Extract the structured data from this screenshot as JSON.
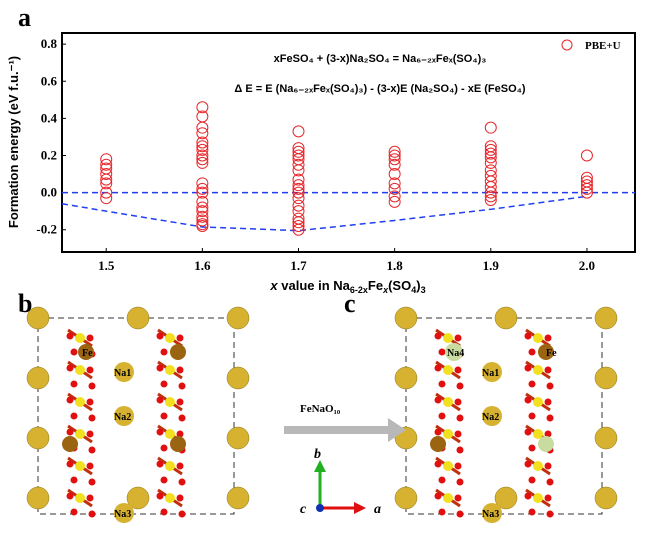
{
  "panels": {
    "a": "a",
    "b": "b",
    "c": "c"
  },
  "chart_data": {
    "type": "scatter",
    "xlabel_parts": {
      "x": "x",
      "mid": " value in Na",
      "sub1": "6-2x",
      "fe": "Fe",
      "sub2": "x",
      "tail": "(SO",
      "sub3": "4",
      "end": ")",
      "sub4": "3"
    },
    "ylabel": "Formation energy (eV f.u.⁻¹)",
    "xlim": [
      1.454,
      2.05
    ],
    "ylim": [
      -0.32,
      0.86
    ],
    "xticks": [
      "1.5",
      "1.6",
      "1.7",
      "1.8",
      "1.9",
      "2.0"
    ],
    "yticks": [
      "-0.2",
      "0.0",
      "0.2",
      "0.4",
      "0.6",
      "0.8"
    ],
    "legend": {
      "label": "PBE+U",
      "position": "top-right",
      "color": "#e8262a"
    },
    "equation1": "xFeSO₄ + (3-x)Na₂SO₄ = Na₆₋₂ₓFeₓ(SO₄)₃",
    "equation2": "Δ E = E (Na₆₋₂ₓFeₓ(SO₄)₃) - (3-x)E (Na₂SO₄) - xE (FeSO₄)",
    "series": [
      {
        "name": "PBE+U",
        "color": "#e8262a",
        "points": [
          [
            1.5,
            0.18
          ],
          [
            1.5,
            0.15
          ],
          [
            1.5,
            0.13
          ],
          [
            1.5,
            0.1
          ],
          [
            1.5,
            0.07
          ],
          [
            1.5,
            0.05
          ],
          [
            1.5,
            0.0
          ],
          [
            1.5,
            -0.03
          ],
          [
            1.6,
            0.46
          ],
          [
            1.6,
            0.41
          ],
          [
            1.6,
            0.35
          ],
          [
            1.6,
            0.32
          ],
          [
            1.6,
            0.27
          ],
          [
            1.6,
            0.25
          ],
          [
            1.6,
            0.23
          ],
          [
            1.6,
            0.2
          ],
          [
            1.6,
            0.18
          ],
          [
            1.6,
            0.16
          ],
          [
            1.6,
            0.05
          ],
          [
            1.6,
            0.02
          ],
          [
            1.6,
            0.0
          ],
          [
            1.6,
            -0.05
          ],
          [
            1.6,
            -0.08
          ],
          [
            1.6,
            -0.1
          ],
          [
            1.6,
            -0.13
          ],
          [
            1.6,
            -0.15
          ],
          [
            1.6,
            -0.17
          ],
          [
            1.6,
            -0.18
          ],
          [
            1.7,
            0.33
          ],
          [
            1.7,
            0.24
          ],
          [
            1.7,
            0.22
          ],
          [
            1.7,
            0.2
          ],
          [
            1.7,
            0.18
          ],
          [
            1.7,
            0.15
          ],
          [
            1.7,
            0.12
          ],
          [
            1.7,
            0.07
          ],
          [
            1.7,
            0.04
          ],
          [
            1.7,
            0.02
          ],
          [
            1.7,
            0.0
          ],
          [
            1.7,
            -0.03
          ],
          [
            1.7,
            -0.07
          ],
          [
            1.7,
            -0.1
          ],
          [
            1.7,
            -0.14
          ],
          [
            1.7,
            -0.16
          ],
          [
            1.7,
            -0.18
          ],
          [
            1.7,
            -0.2
          ],
          [
            1.8,
            0.22
          ],
          [
            1.8,
            0.2
          ],
          [
            1.8,
            0.18
          ],
          [
            1.8,
            0.15
          ],
          [
            1.8,
            0.1
          ],
          [
            1.8,
            0.05
          ],
          [
            1.8,
            0.02
          ],
          [
            1.8,
            -0.02
          ],
          [
            1.8,
            -0.05
          ],
          [
            1.9,
            0.35
          ],
          [
            1.9,
            0.25
          ],
          [
            1.9,
            0.23
          ],
          [
            1.9,
            0.21
          ],
          [
            1.9,
            0.19
          ],
          [
            1.9,
            0.16
          ],
          [
            1.9,
            0.12
          ],
          [
            1.9,
            0.09
          ],
          [
            1.9,
            0.06
          ],
          [
            1.9,
            0.03
          ],
          [
            1.9,
            0.0
          ],
          [
            1.9,
            -0.02
          ],
          [
            1.9,
            -0.04
          ],
          [
            2.0,
            0.2
          ],
          [
            2.0,
            0.08
          ],
          [
            2.0,
            0.06
          ],
          [
            2.0,
            0.04
          ],
          [
            2.0,
            0.02
          ],
          [
            2.0,
            0.0
          ]
        ]
      }
    ],
    "reference_line": {
      "y": 0.0,
      "color": "#1f3ff0",
      "style": "dashed"
    },
    "convex_hull": {
      "color": "#1f3ff0",
      "style": "dashed",
      "points": [
        [
          1.454,
          -0.06
        ],
        [
          1.5,
          -0.1
        ],
        [
          1.6,
          -0.185
        ],
        [
          1.7,
          -0.205
        ],
        [
          1.8,
          -0.15
        ],
        [
          1.9,
          -0.09
        ],
        [
          2.0,
          -0.02
        ]
      ]
    }
  },
  "structure_b": {
    "labels": [
      "Fe",
      "Na1",
      "Na2",
      "Na3"
    ]
  },
  "structure_c": {
    "labels": [
      "Na4",
      "Fe",
      "Na1",
      "Na2",
      "Na3"
    ]
  },
  "arrow_label": "FeNaO₁₀",
  "axes_labels": {
    "b": "b",
    "c": "c",
    "a": "a"
  },
  "colors": {
    "na": "#d6b230",
    "fe": "#9a6410",
    "o": "#e01010",
    "s": "#f0e020",
    "na4": "#c8dca0"
  }
}
